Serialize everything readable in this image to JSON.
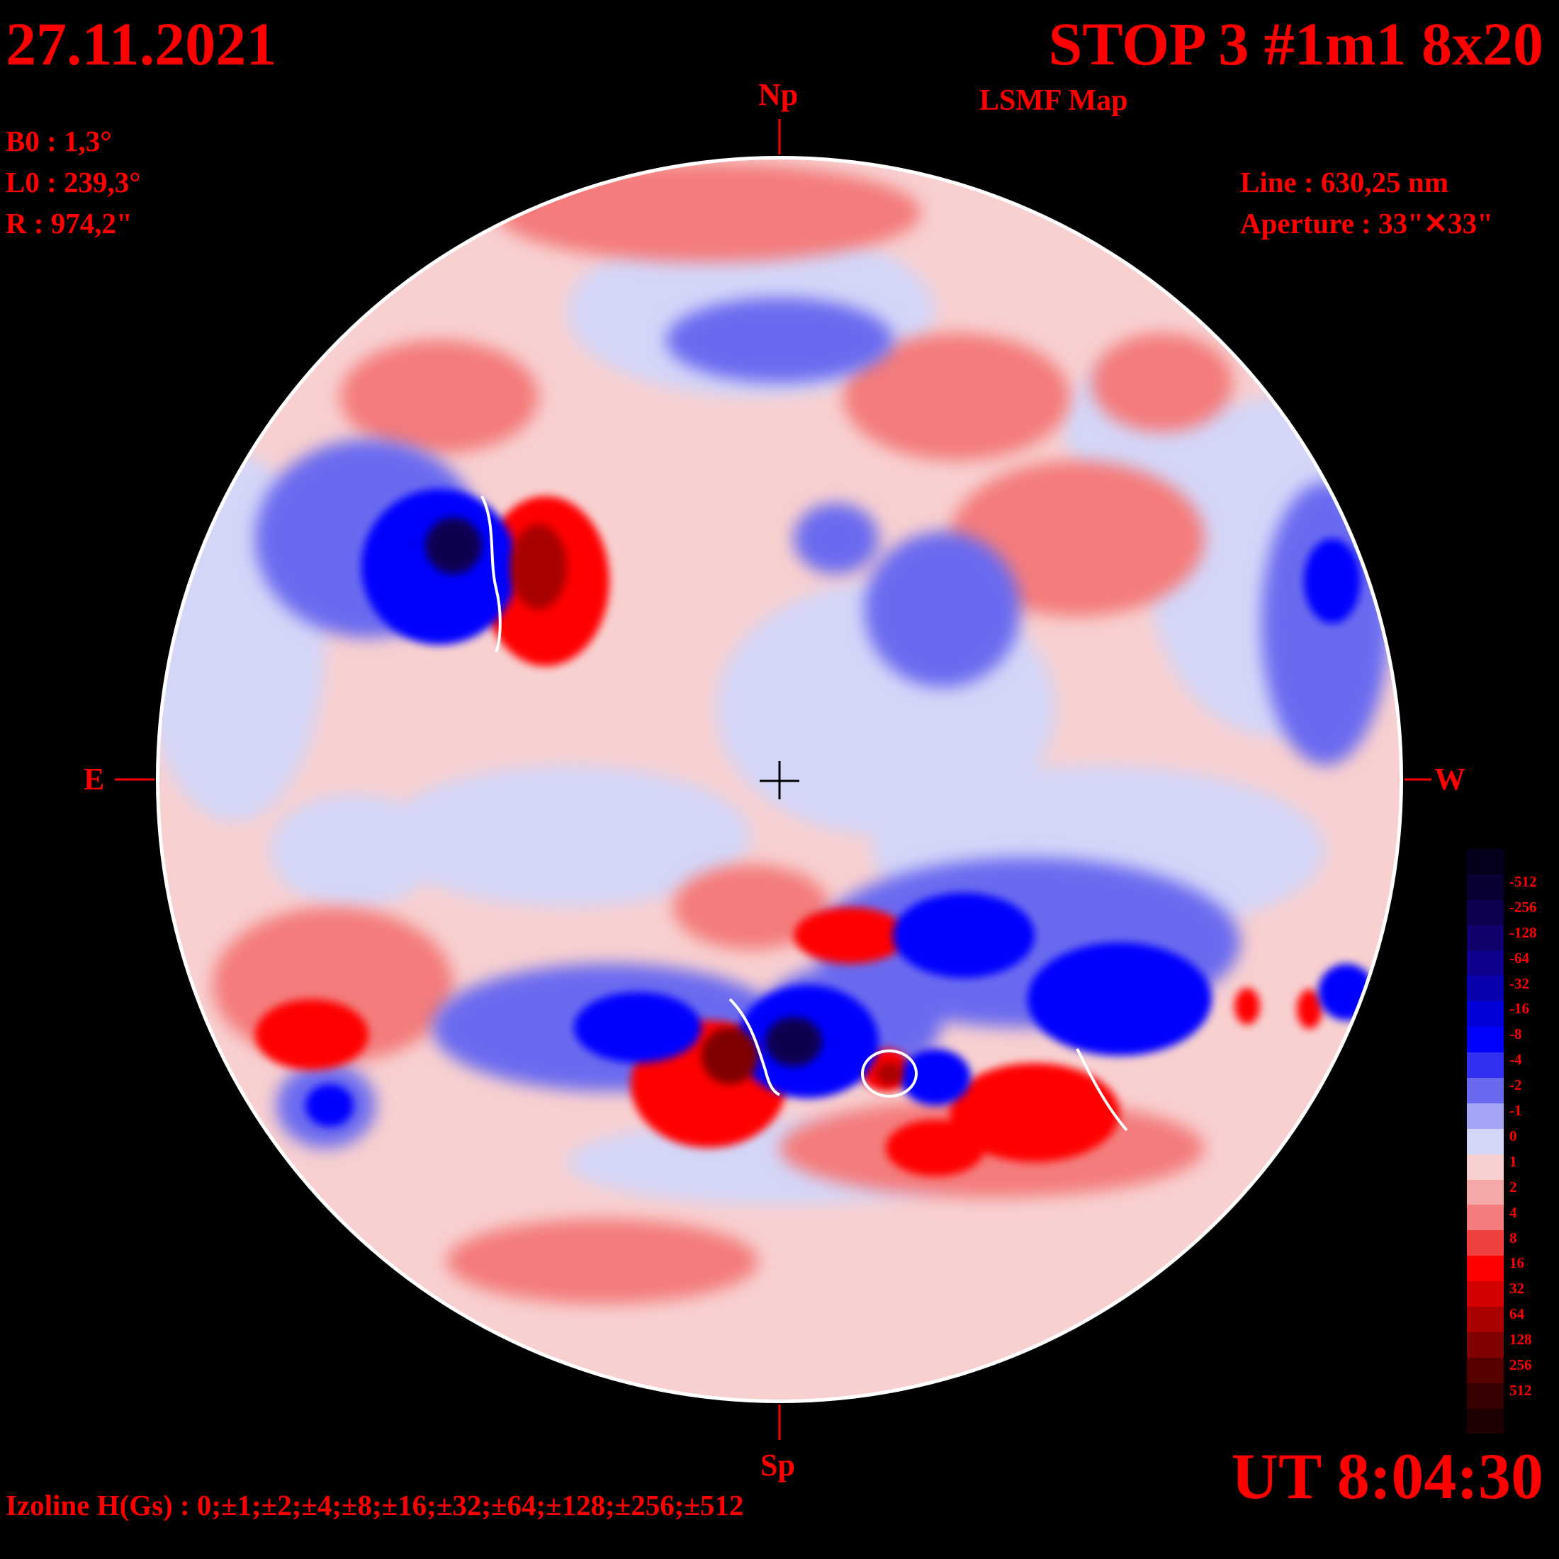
{
  "header": {
    "date": "27.11.2021",
    "title": "STOP 3 #1m1 8x20",
    "subtitle": "LSMF  Map"
  },
  "params": {
    "b0": "B0 : 1,3°",
    "l0": "L0 : 239,3°",
    "r": "R  : 974,2\""
  },
  "observation": {
    "line": "Line :  630,25 nm",
    "aperture": "Aperture : 33\"✕33\""
  },
  "cardinals": {
    "north": "Np",
    "south": "Sp",
    "east": "E",
    "west": "W"
  },
  "footer": {
    "time": "UT 8:04:30",
    "izoline": "Izoline H(Gs) : 0;±1;±2;±4;±8;±16;±32;±64;±128;±256;±512"
  },
  "legend": {
    "labels": [
      "-512",
      "-256",
      "-128",
      "-64",
      "-32",
      "-16",
      "-8",
      "-4",
      "-2",
      "-1",
      "0",
      "1",
      "2",
      "4",
      "8",
      "16",
      "32",
      "64",
      "128",
      "256",
      "512"
    ],
    "colors": [
      "#07001a",
      "#0b0033",
      "#0e0050",
      "#10006e",
      "#0d008e",
      "#0900b0",
      "#0000d8",
      "#0000ff",
      "#3030ee",
      "#6a6af0",
      "#a4a4f4",
      "#d4d6f8",
      "#f8d0d0",
      "#f6a8a8",
      "#f47c7c",
      "#f04040",
      "#ff0000",
      "#d40000",
      "#a80000",
      "#7e0000",
      "#560000",
      "#360000",
      "#1e0000"
    ]
  },
  "colors": {
    "text": "#ff0000",
    "background": "#000000",
    "disk_outline": "#ffffff",
    "neutral_positive": "#f8d0d0",
    "neutral_negative": "#d4d6f8"
  }
}
